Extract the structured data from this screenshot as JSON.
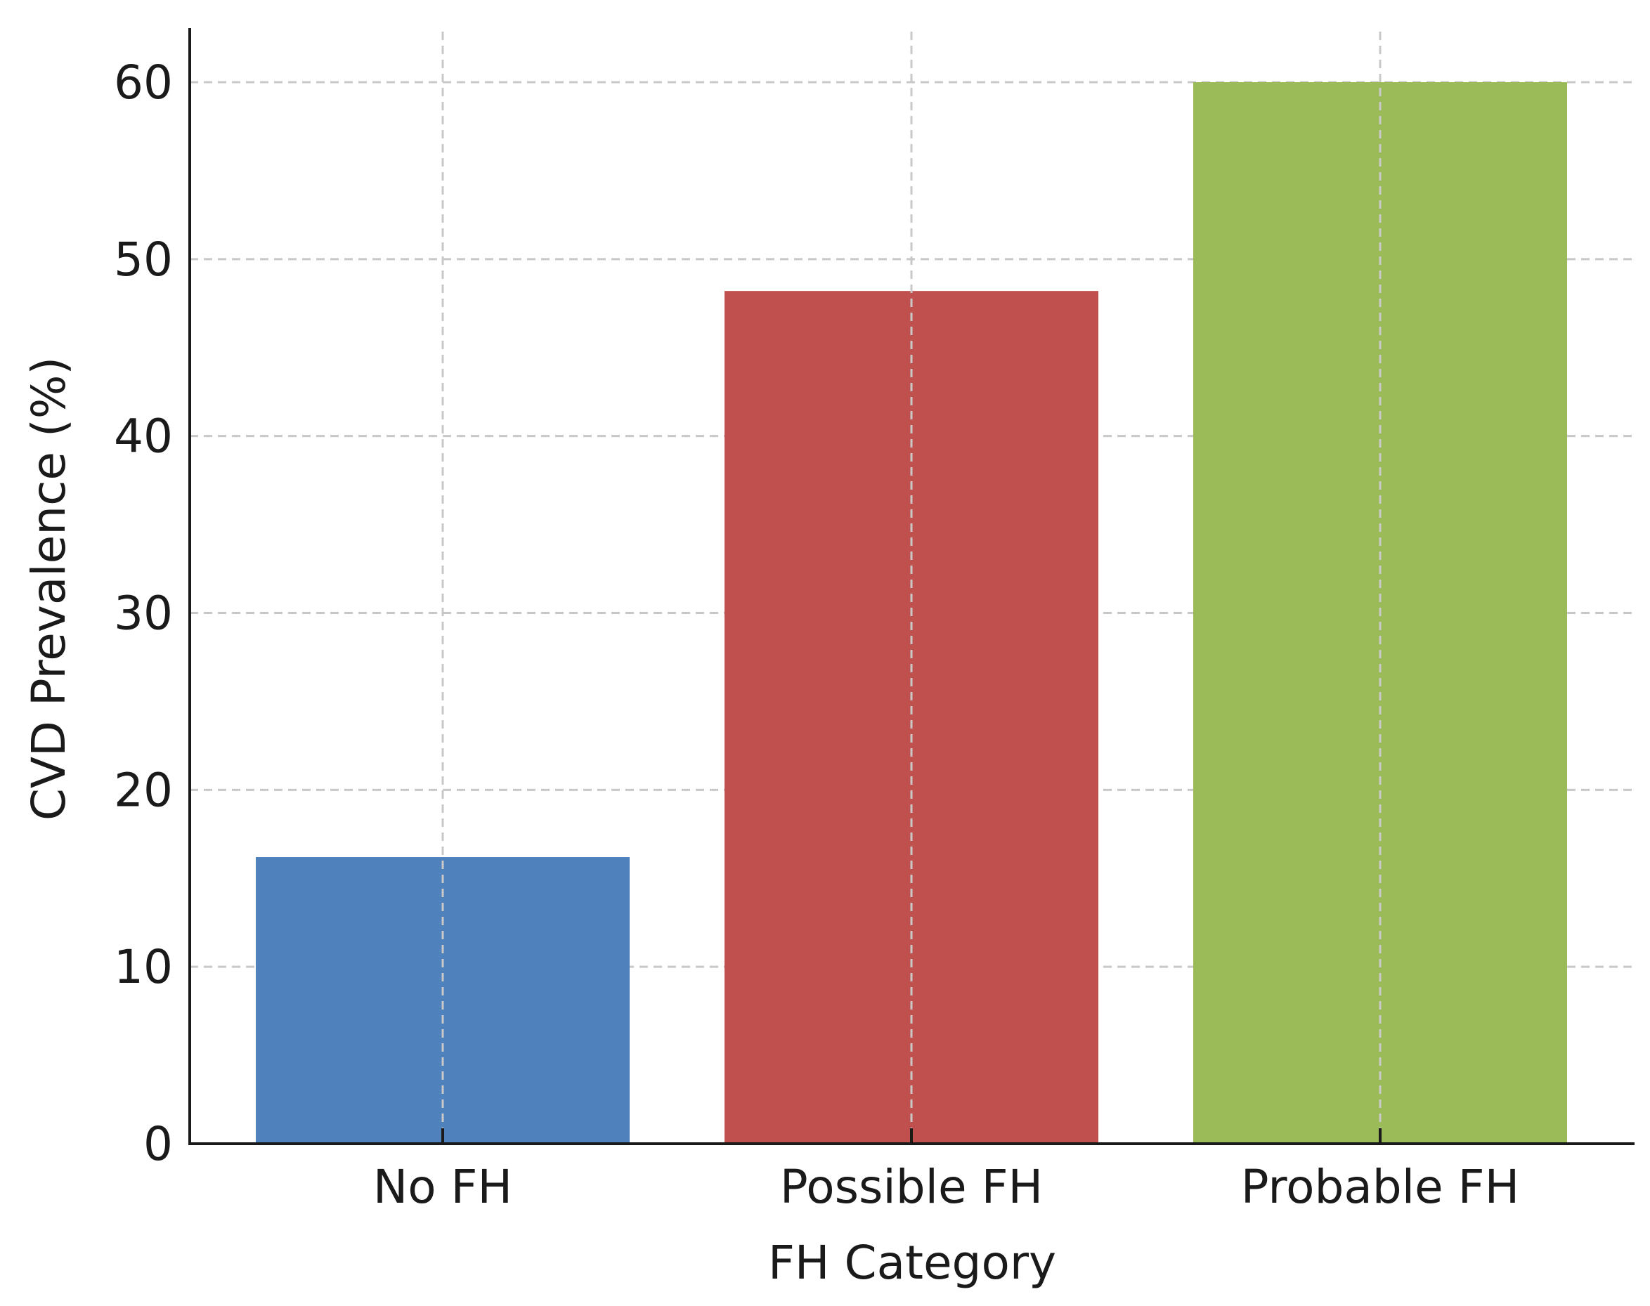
{
  "chart_data": {
    "type": "bar",
    "title": "",
    "xlabel": "FH Category",
    "ylabel": "CVD Prevalence (%)",
    "categories": [
      "No FH",
      "Possible FH",
      "Probable FH"
    ],
    "values": [
      16.2,
      48.2,
      60.0
    ],
    "colors": [
      "#4f81bd",
      "#c0504d",
      "#9bbb59"
    ],
    "ylim": [
      0,
      63
    ],
    "yticks": [
      0,
      10,
      20,
      30,
      40,
      50,
      60
    ],
    "ytick_labels": [
      "0",
      "10",
      "20",
      "30",
      "40",
      "50",
      "60"
    ],
    "grid": true,
    "legend": "none"
  }
}
